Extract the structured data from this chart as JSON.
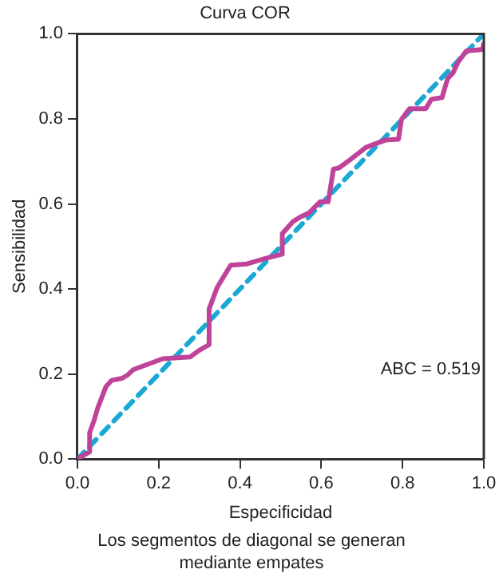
{
  "chart_data": {
    "type": "line",
    "title": "Curva COR",
    "xlabel": "Especificidad",
    "ylabel": "Sensibilidad",
    "xlim": [
      0,
      1
    ],
    "ylim": [
      0,
      1
    ],
    "xticks": [
      {
        "value": 0,
        "label": "0.0"
      },
      {
        "value": 0.2,
        "label": "0.2"
      },
      {
        "value": 0.4,
        "label": "0.4"
      },
      {
        "value": 0.6,
        "label": "0.6"
      },
      {
        "value": 0.8,
        "label": "0.8"
      },
      {
        "value": 1,
        "label": "1.0"
      }
    ],
    "yticks": [
      {
        "value": 0,
        "label": "0.0"
      },
      {
        "value": 0.2,
        "label": "0.2"
      },
      {
        "value": 0.4,
        "label": "0.4"
      },
      {
        "value": 0.6,
        "label": "0.6"
      },
      {
        "value": 0.8,
        "label": "0.8"
      },
      {
        "value": 1,
        "label": "1.0"
      }
    ],
    "grid": false,
    "legend": false,
    "marker": "none",
    "series": [
      {
        "color": "#c0439a",
        "line_style": "solid",
        "x": [
          0,
          0.03,
          0.03,
          0.04,
          0.05,
          0.07,
          0.084,
          0.11,
          0.124,
          0.137,
          0.21,
          0.277,
          0.3,
          0.324,
          0.324,
          0.344,
          0.377,
          0.417,
          0.464,
          0.504,
          0.504,
          0.531,
          0.55,
          0.57,
          0.597,
          0.617,
          0.63,
          0.644,
          0.671,
          0.71,
          0.757,
          0.79,
          0.797,
          0.817,
          0.857,
          0.871,
          0.897,
          0.911,
          0.924,
          0.937,
          0.957,
          0.997,
          1
        ],
        "values": [
          0,
          0.017,
          0.062,
          0.088,
          0.12,
          0.17,
          0.185,
          0.19,
          0.198,
          0.21,
          0.236,
          0.24,
          0.256,
          0.269,
          0.353,
          0.404,
          0.456,
          0.459,
          0.472,
          0.482,
          0.53,
          0.559,
          0.57,
          0.579,
          0.605,
          0.605,
          0.682,
          0.685,
          0.704,
          0.733,
          0.75,
          0.752,
          0.798,
          0.824,
          0.824,
          0.846,
          0.85,
          0.895,
          0.908,
          0.934,
          0.96,
          0.963,
          0.98
        ]
      },
      {
        "color": "#1ba8d4",
        "line_style": "dashed",
        "x": [
          0,
          1
        ],
        "values": [
          0,
          1
        ]
      }
    ],
    "annotations": [
      "ABC = 0.519",
      "Los segmentos de diagonal se generan mediante empates"
    ]
  }
}
